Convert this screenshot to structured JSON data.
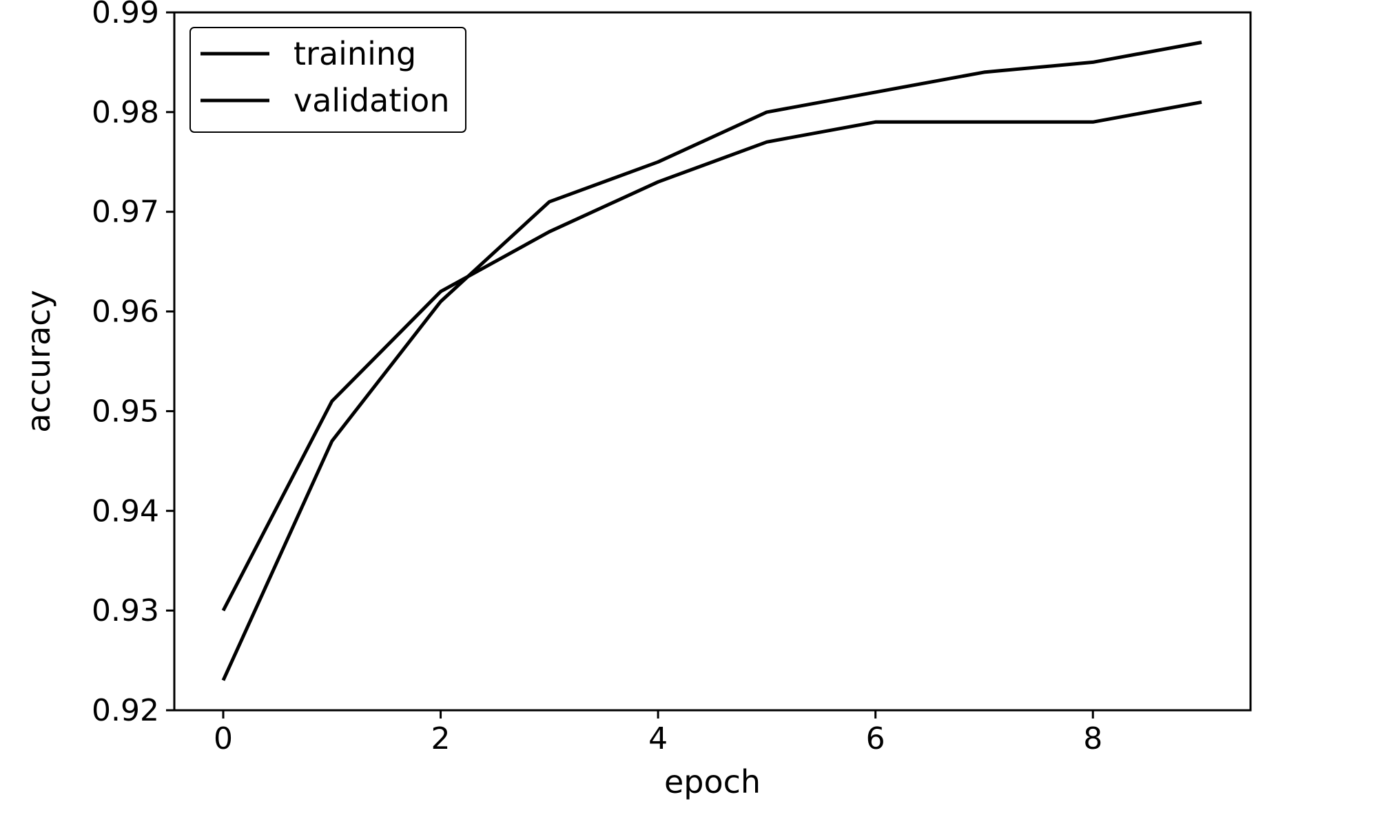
{
  "chart_data": {
    "type": "line",
    "title": "",
    "xlabel": "epoch",
    "ylabel": "accuracy",
    "x": [
      0,
      1,
      2,
      3,
      4,
      5,
      6,
      7,
      8,
      9
    ],
    "xlim": [
      -0.45,
      9.45
    ],
    "ylim": [
      0.92,
      0.99
    ],
    "xticks": [
      0,
      2,
      4,
      6,
      8
    ],
    "xtick_labels": [
      "0",
      "2",
      "4",
      "6",
      "8"
    ],
    "yticks": [
      0.92,
      0.93,
      0.94,
      0.95,
      0.96,
      0.97,
      0.98,
      0.99
    ],
    "ytick_labels": [
      "0.92",
      "0.93",
      "0.94",
      "0.95",
      "0.96",
      "0.97",
      "0.98",
      "0.99"
    ],
    "grid": false,
    "legend_position": "top-left",
    "series": [
      {
        "name": "training",
        "color": "#000000",
        "values": [
          0.923,
          0.947,
          0.961,
          0.971,
          0.975,
          0.98,
          0.982,
          0.984,
          0.985,
          0.987
        ]
      },
      {
        "name": "validation",
        "color": "#000000",
        "values": [
          0.93,
          0.951,
          0.962,
          0.968,
          0.973,
          0.977,
          0.979,
          0.979,
          0.979,
          0.981
        ]
      }
    ]
  }
}
